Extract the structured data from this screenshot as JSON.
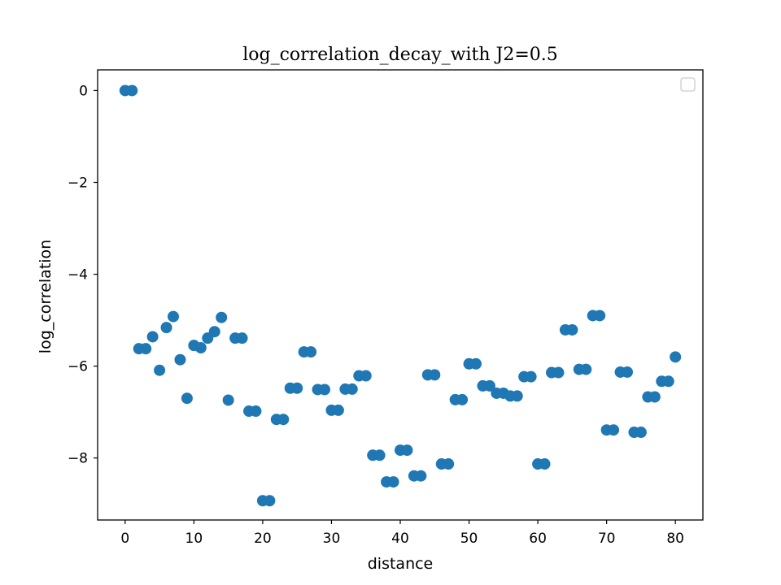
{
  "chart_data": {
    "type": "scatter",
    "title": "log_correlation_decay_with J2=0.5",
    "xlabel": "distance",
    "ylabel": "log_correlation",
    "xlim": [
      -4,
      84
    ],
    "ylim": [
      -9.35,
      0.45
    ],
    "xticks": [
      0,
      10,
      20,
      30,
      40,
      50,
      60,
      70,
      80
    ],
    "yticks": [
      0,
      -2,
      -4,
      -6,
      -8
    ],
    "xtick_labels": [
      "0",
      "10",
      "20",
      "30",
      "40",
      "50",
      "60",
      "70",
      "80"
    ],
    "ytick_labels": [
      "0",
      "−2",
      "−4",
      "−6",
      "−8"
    ],
    "grid": false,
    "legend": {
      "placement": "top-right",
      "entries": []
    },
    "marker_color": "#1f77b4",
    "series": [
      {
        "x": [
          0,
          1,
          2,
          3,
          4,
          5,
          6,
          7,
          8,
          9,
          10,
          11,
          12,
          13,
          14,
          15,
          16,
          17,
          18,
          19,
          20,
          21,
          22,
          23,
          24,
          25,
          26,
          27,
          28,
          29,
          30,
          31,
          32,
          33,
          34,
          35,
          36,
          37,
          38,
          39,
          40,
          41,
          42,
          43,
          44,
          45,
          46,
          47,
          48,
          49,
          50,
          51,
          52,
          53,
          54,
          55,
          56,
          57,
          58,
          59,
          60,
          61,
          62,
          63,
          64,
          65,
          66,
          67,
          68,
          69,
          70,
          71,
          72,
          73,
          74,
          75,
          76,
          77,
          78,
          79,
          80
        ],
        "y": [
          0.0,
          0.0,
          -5.62,
          -5.62,
          -5.36,
          -6.09,
          -5.16,
          -4.92,
          -5.86,
          -6.7,
          -5.55,
          -5.6,
          -5.39,
          -5.25,
          -4.94,
          -6.74,
          -5.39,
          -5.39,
          -6.98,
          -6.98,
          -8.93,
          -8.93,
          -7.16,
          -7.16,
          -6.48,
          -6.48,
          -5.69,
          -5.69,
          -6.51,
          -6.51,
          -6.96,
          -6.96,
          -6.5,
          -6.5,
          -6.21,
          -6.21,
          -7.94,
          -7.94,
          -8.52,
          -8.52,
          -7.83,
          -7.83,
          -8.39,
          -8.39,
          -6.19,
          -6.19,
          -8.13,
          -8.13,
          -6.73,
          -6.73,
          -5.95,
          -5.95,
          -6.43,
          -6.43,
          -6.59,
          -6.59,
          -6.65,
          -6.65,
          -6.23,
          -6.23,
          -8.13,
          -8.13,
          -6.14,
          -6.14,
          -5.21,
          -5.21,
          -6.07,
          -6.07,
          -4.9,
          -4.9,
          -7.39,
          -7.39,
          -6.13,
          -6.13,
          -7.44,
          -7.44,
          -6.67,
          -6.67,
          -6.33,
          -6.33,
          -5.8
        ]
      }
    ]
  }
}
